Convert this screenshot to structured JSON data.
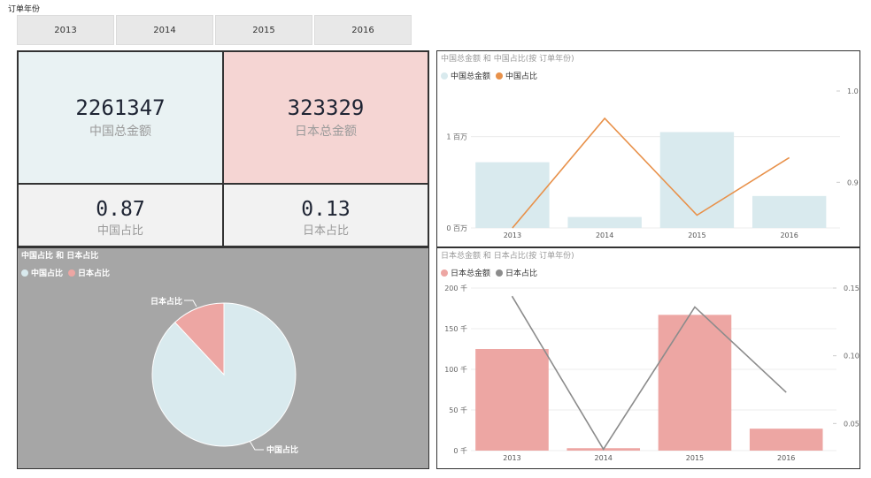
{
  "slicer": {
    "title": "订单年份",
    "years": [
      "2013",
      "2014",
      "2015",
      "2016"
    ]
  },
  "cards": {
    "china_total": {
      "value": "2261347",
      "label": "中国总金额",
      "bg": "#e9f2f3"
    },
    "japan_total": {
      "value": "323329",
      "label": "日本总金额",
      "bg": "#f5d5d3"
    },
    "china_ratio": {
      "value": "0.87",
      "label": "中国占比",
      "bg": "#f2f2f2"
    },
    "japan_ratio": {
      "value": "0.13",
      "label": "日本占比",
      "bg": "#f2f2f2"
    }
  },
  "pie": {
    "title": "中国占比 和 日本占比",
    "legend": [
      "中国占比",
      "日本占比"
    ],
    "slice_labels": {
      "china": "中国占比",
      "japan": "日本占比"
    },
    "colors": {
      "china": "#d9eaee",
      "japan": "#eda6a3",
      "background": "#a6a6a6"
    }
  },
  "chart_data": [
    {
      "type": "bar+line",
      "title": "中国总金额 和 中国占比(按 订单年份)",
      "legend": [
        "中国总金额",
        "中国占比"
      ],
      "categories": [
        "2013",
        "2014",
        "2015",
        "2016"
      ],
      "series": [
        {
          "name": "中国总金额",
          "type": "bar",
          "axis": "left",
          "values": [
            720000,
            120000,
            1050000,
            350000
          ],
          "color": "#d9eaee"
        },
        {
          "name": "中国占比",
          "type": "line",
          "axis": "right",
          "values": [
            0.85,
            0.97,
            0.864,
            0.927
          ],
          "color": "#e8914a"
        }
      ],
      "left_axis": {
        "ticks": [
          0,
          1000000
        ],
        "tick_labels": [
          "0 百万",
          "1 百万"
        ],
        "ylim": [
          0,
          1500000
        ]
      },
      "right_axis": {
        "ticks": [
          0.9,
          1.0
        ],
        "tick_labels": [
          "0.9",
          "1.0"
        ],
        "ylim": [
          0.85,
          1.0
        ]
      }
    },
    {
      "type": "bar+line",
      "title": "日本总金额 和 日本占比(按 订单年份)",
      "legend": [
        "日本总金额",
        "日本占比"
      ],
      "categories": [
        "2013",
        "2014",
        "2015",
        "2016"
      ],
      "series": [
        {
          "name": "日本总金额",
          "type": "bar",
          "axis": "left",
          "values": [
            125000,
            3000,
            167000,
            27000
          ],
          "color": "#eda6a3"
        },
        {
          "name": "日本占比",
          "type": "line",
          "axis": "right",
          "values": [
            0.144,
            0.031,
            0.136,
            0.073
          ],
          "color": "#8c8c8c"
        }
      ],
      "left_axis": {
        "ticks": [
          0,
          50000,
          100000,
          150000,
          200000
        ],
        "tick_labels": [
          "0 千",
          "50 千",
          "100 千",
          "150 千",
          "200 千"
        ],
        "ylim": [
          0,
          200000
        ]
      },
      "right_axis": {
        "ticks": [
          0.05,
          0.1,
          0.15
        ],
        "tick_labels": [
          "0.05",
          "0.10",
          "0.15"
        ],
        "ylim": [
          0.03,
          0.15
        ]
      }
    }
  ]
}
